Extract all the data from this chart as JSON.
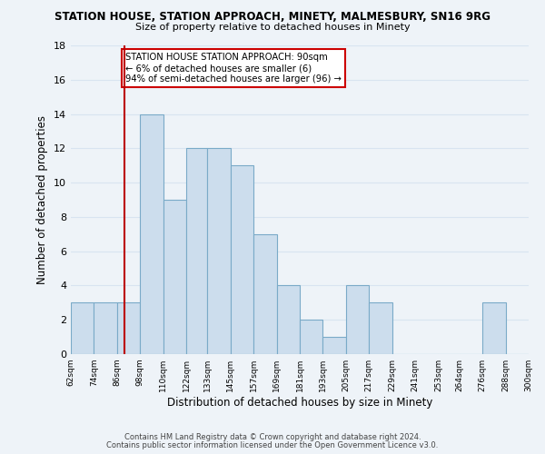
{
  "title": "STATION HOUSE, STATION APPROACH, MINETY, MALMESBURY, SN16 9RG",
  "subtitle": "Size of property relative to detached houses in Minety",
  "xlabel": "Distribution of detached houses by size in Minety",
  "ylabel": "Number of detached properties",
  "footer_line1": "Contains HM Land Registry data © Crown copyright and database right 2024.",
  "footer_line2": "Contains public sector information licensed under the Open Government Licence v3.0.",
  "bar_edges": [
    62,
    74,
    86,
    98,
    110,
    122,
    133,
    145,
    157,
    169,
    181,
    193,
    205,
    217,
    229,
    241,
    253,
    264,
    276,
    288,
    300
  ],
  "bar_heights": [
    3,
    3,
    3,
    14,
    9,
    12,
    12,
    11,
    7,
    4,
    2,
    1,
    4,
    3,
    0,
    0,
    0,
    0,
    3,
    0
  ],
  "bar_color": "#ccdded",
  "bar_edgecolor": "#7aaac8",
  "vline_x": 90,
  "vline_color": "#bb0000",
  "ylim": [
    0,
    18
  ],
  "yticks": [
    0,
    2,
    4,
    6,
    8,
    10,
    12,
    14,
    16,
    18
  ],
  "xtick_labels": [
    "62sqm",
    "74sqm",
    "86sqm",
    "98sqm",
    "110sqm",
    "122sqm",
    "133sqm",
    "145sqm",
    "157sqm",
    "169sqm",
    "181sqm",
    "193sqm",
    "205sqm",
    "217sqm",
    "229sqm",
    "241sqm",
    "253sqm",
    "264sqm",
    "276sqm",
    "288sqm",
    "300sqm"
  ],
  "annotation_title": "STATION HOUSE STATION APPROACH: 90sqm",
  "annotation_line2": "← 6% of detached houses are smaller (6)",
  "annotation_line3": "94% of semi-detached houses are larger (96) →",
  "grid_color": "#d8e4f0",
  "bg_color": "#eef3f8"
}
